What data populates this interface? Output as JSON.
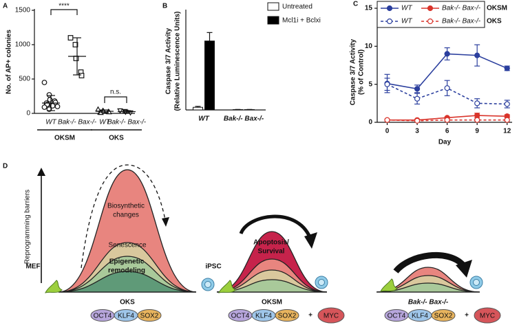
{
  "chart_data": [
    {
      "panel": "A",
      "type": "dotplot",
      "ylabel": "No. of AP+ colonies",
      "categories": [
        "WT",
        "Bak-/- Bax-/-",
        "WT",
        "Bak-/- Bax-/-"
      ],
      "group_labels": [
        "OKSM",
        "OKS"
      ],
      "markers": [
        "circle",
        "square",
        "triangle-up",
        "triangle-down"
      ],
      "points": [
        [
          450,
          270,
          200,
          180,
          160,
          150,
          130,
          120,
          110,
          100,
          90,
          60
        ],
        [
          1100,
          1000,
          800,
          600,
          550
        ],
        [
          60,
          40,
          30,
          25,
          20,
          15,
          10
        ],
        [
          40,
          30,
          20,
          10
        ]
      ],
      "means": [
        150,
        830,
        30,
        25
      ],
      "errors": [
        110,
        270,
        20,
        15
      ],
      "annotations": [
        "****",
        "n.s."
      ],
      "ylim": [
        0,
        1500
      ],
      "yticks": [
        0,
        500,
        1000,
        1500
      ]
    },
    {
      "panel": "B",
      "type": "bar",
      "ylabel": "Caspase 3/7 Activity",
      "ylabel_sub": "(Relative Luminescence Units)",
      "categories": [
        "WT",
        "Bak-/- Bax-/-"
      ],
      "series": [
        {
          "name": "Untreated",
          "color": "#ffffff",
          "values": [
            0.8,
            0.1
          ],
          "errors": [
            0.3,
            0.05
          ]
        },
        {
          "name": "Mcl1i + Bclxi",
          "color": "#000000",
          "values": [
            21.2,
            0.1
          ],
          "errors": [
            2.6,
            0.05
          ]
        }
      ],
      "ylim": [
        0,
        30
      ]
    },
    {
      "panel": "C",
      "type": "line",
      "ylabel": "Caspase 3/7 Activity",
      "ylabel_sub": "(% of Control)",
      "xlabel": "Day",
      "x": [
        0,
        3,
        6,
        9,
        12
      ],
      "xlim": [
        -1,
        12.5
      ],
      "xticks": [
        0,
        3,
        6,
        9,
        12
      ],
      "ylim": [
        0,
        15
      ],
      "yticks": [
        0,
        5,
        10,
        15
      ],
      "legend_groups": [
        "OKSM",
        "OKS"
      ],
      "series": [
        {
          "name": "WT",
          "color": "#2b3f9e",
          "dashed": false,
          "filled": true,
          "values": [
            5.1,
            4.4,
            9.0,
            8.8,
            7.1
          ],
          "errors": [
            1.2,
            0.5,
            0.8,
            1.4,
            0.3
          ]
        },
        {
          "name": "Bak-/- Bax-/-",
          "color": "#d9342b",
          "dashed": false,
          "filled": true,
          "values": [
            0.3,
            0.3,
            0.6,
            0.9,
            0.8
          ],
          "errors": [
            0.1,
            0.1,
            0.1,
            0.3,
            0.2
          ]
        },
        {
          "name": "WT",
          "color": "#2b3f9e",
          "dashed": true,
          "filled": false,
          "values": [
            5.0,
            3.1,
            4.5,
            2.5,
            2.4
          ],
          "errors": [
            0.8,
            0.7,
            1.0,
            0.6,
            0.5
          ]
        },
        {
          "name": "Bak-/- Bax-/-",
          "color": "#d9342b",
          "dashed": true,
          "filled": false,
          "values": [
            0.3,
            0.2,
            0.3,
            0.3,
            0.3
          ],
          "errors": [
            0.1,
            0.1,
            0.1,
            0.1,
            0.1
          ]
        }
      ]
    }
  ],
  "diagram": {
    "panel": "D",
    "ylabel": "Reprogramming barriers",
    "start": "MEF",
    "end": "iPSC",
    "layers": [
      [
        "Biosynthetic",
        "changes"
      ],
      [
        "Senescence"
      ],
      [
        "Epigenetic",
        "remodeling"
      ]
    ],
    "middle_layer": [
      "Apoptosis/",
      "Survival"
    ],
    "factor_colors": [
      "#b7a6dc",
      "#9fc6ea",
      "#e8b45e",
      "#d6555a"
    ],
    "plus": "+",
    "conditions": [
      {
        "label": "OKS",
        "factors": [
          "OCT4",
          "KLF4",
          "SOX2"
        ]
      },
      {
        "label": "OKSM",
        "factors": [
          "OCT4",
          "KLF4",
          "SOX2",
          "MYC"
        ]
      },
      {
        "label": "Bak-/- Bax-/-",
        "factors": [
          "OCT4",
          "KLF4",
          "SOX2",
          "MYC"
        ]
      }
    ]
  }
}
